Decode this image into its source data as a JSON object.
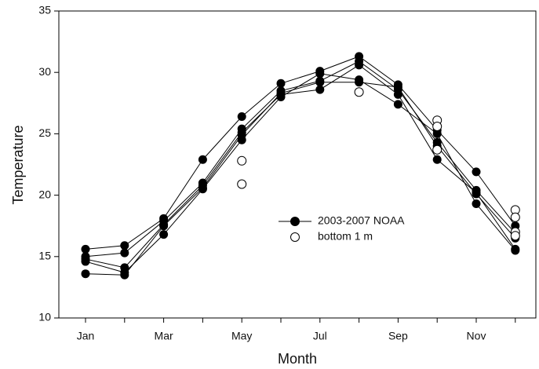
{
  "chart_data": {
    "type": "line",
    "x_label": "Month",
    "y_label": "Temperature",
    "categories": [
      "Jan",
      null,
      "Mar",
      null,
      "May",
      null,
      "Jul",
      null,
      "Sep",
      null,
      "Nov",
      null
    ],
    "ylim": [
      10,
      35
    ],
    "yticks": [
      10,
      15,
      20,
      25,
      30,
      35
    ],
    "grid": false,
    "legend": "center-right",
    "series": [
      {
        "name": "2003-2007 NOAA",
        "color": "#000000",
        "marker": "filled",
        "lines": [
          [
            15.6,
            15.9,
            18.1,
            22.9,
            26.4,
            29.1,
            30.1,
            31.3,
            29.0,
            25.3,
            21.9,
            17.5
          ],
          [
            15.0,
            15.3,
            17.9,
            21.0,
            25.4,
            28.5,
            29.3,
            30.9,
            28.6,
            24.3,
            20.4,
            16.9
          ],
          [
            14.8,
            14.1,
            17.6,
            20.8,
            25.1,
            28.2,
            28.6,
            30.6,
            28.2,
            22.9,
            20.2,
            15.6
          ],
          [
            14.6,
            13.7,
            16.8,
            20.5,
            24.5,
            28.0,
            29.9,
            29.4,
            27.4,
            25.0,
            19.3,
            15.5
          ],
          [
            13.6,
            13.5,
            17.5,
            20.6,
            24.9,
            28.3,
            29.2,
            29.2,
            28.8,
            24.0,
            20.1,
            16.5
          ]
        ]
      },
      {
        "name": "bottom 1 m",
        "color": "#000000",
        "marker": "open",
        "values": [
          [],
          [],
          [],
          [],
          [
            22.8,
            20.9
          ],
          [],
          [],
          [
            28.4
          ],
          [],
          [
            26.1,
            25.6,
            23.7
          ],
          [],
          [
            18.8,
            18.2,
            17.0,
            16.7
          ]
        ]
      }
    ]
  }
}
